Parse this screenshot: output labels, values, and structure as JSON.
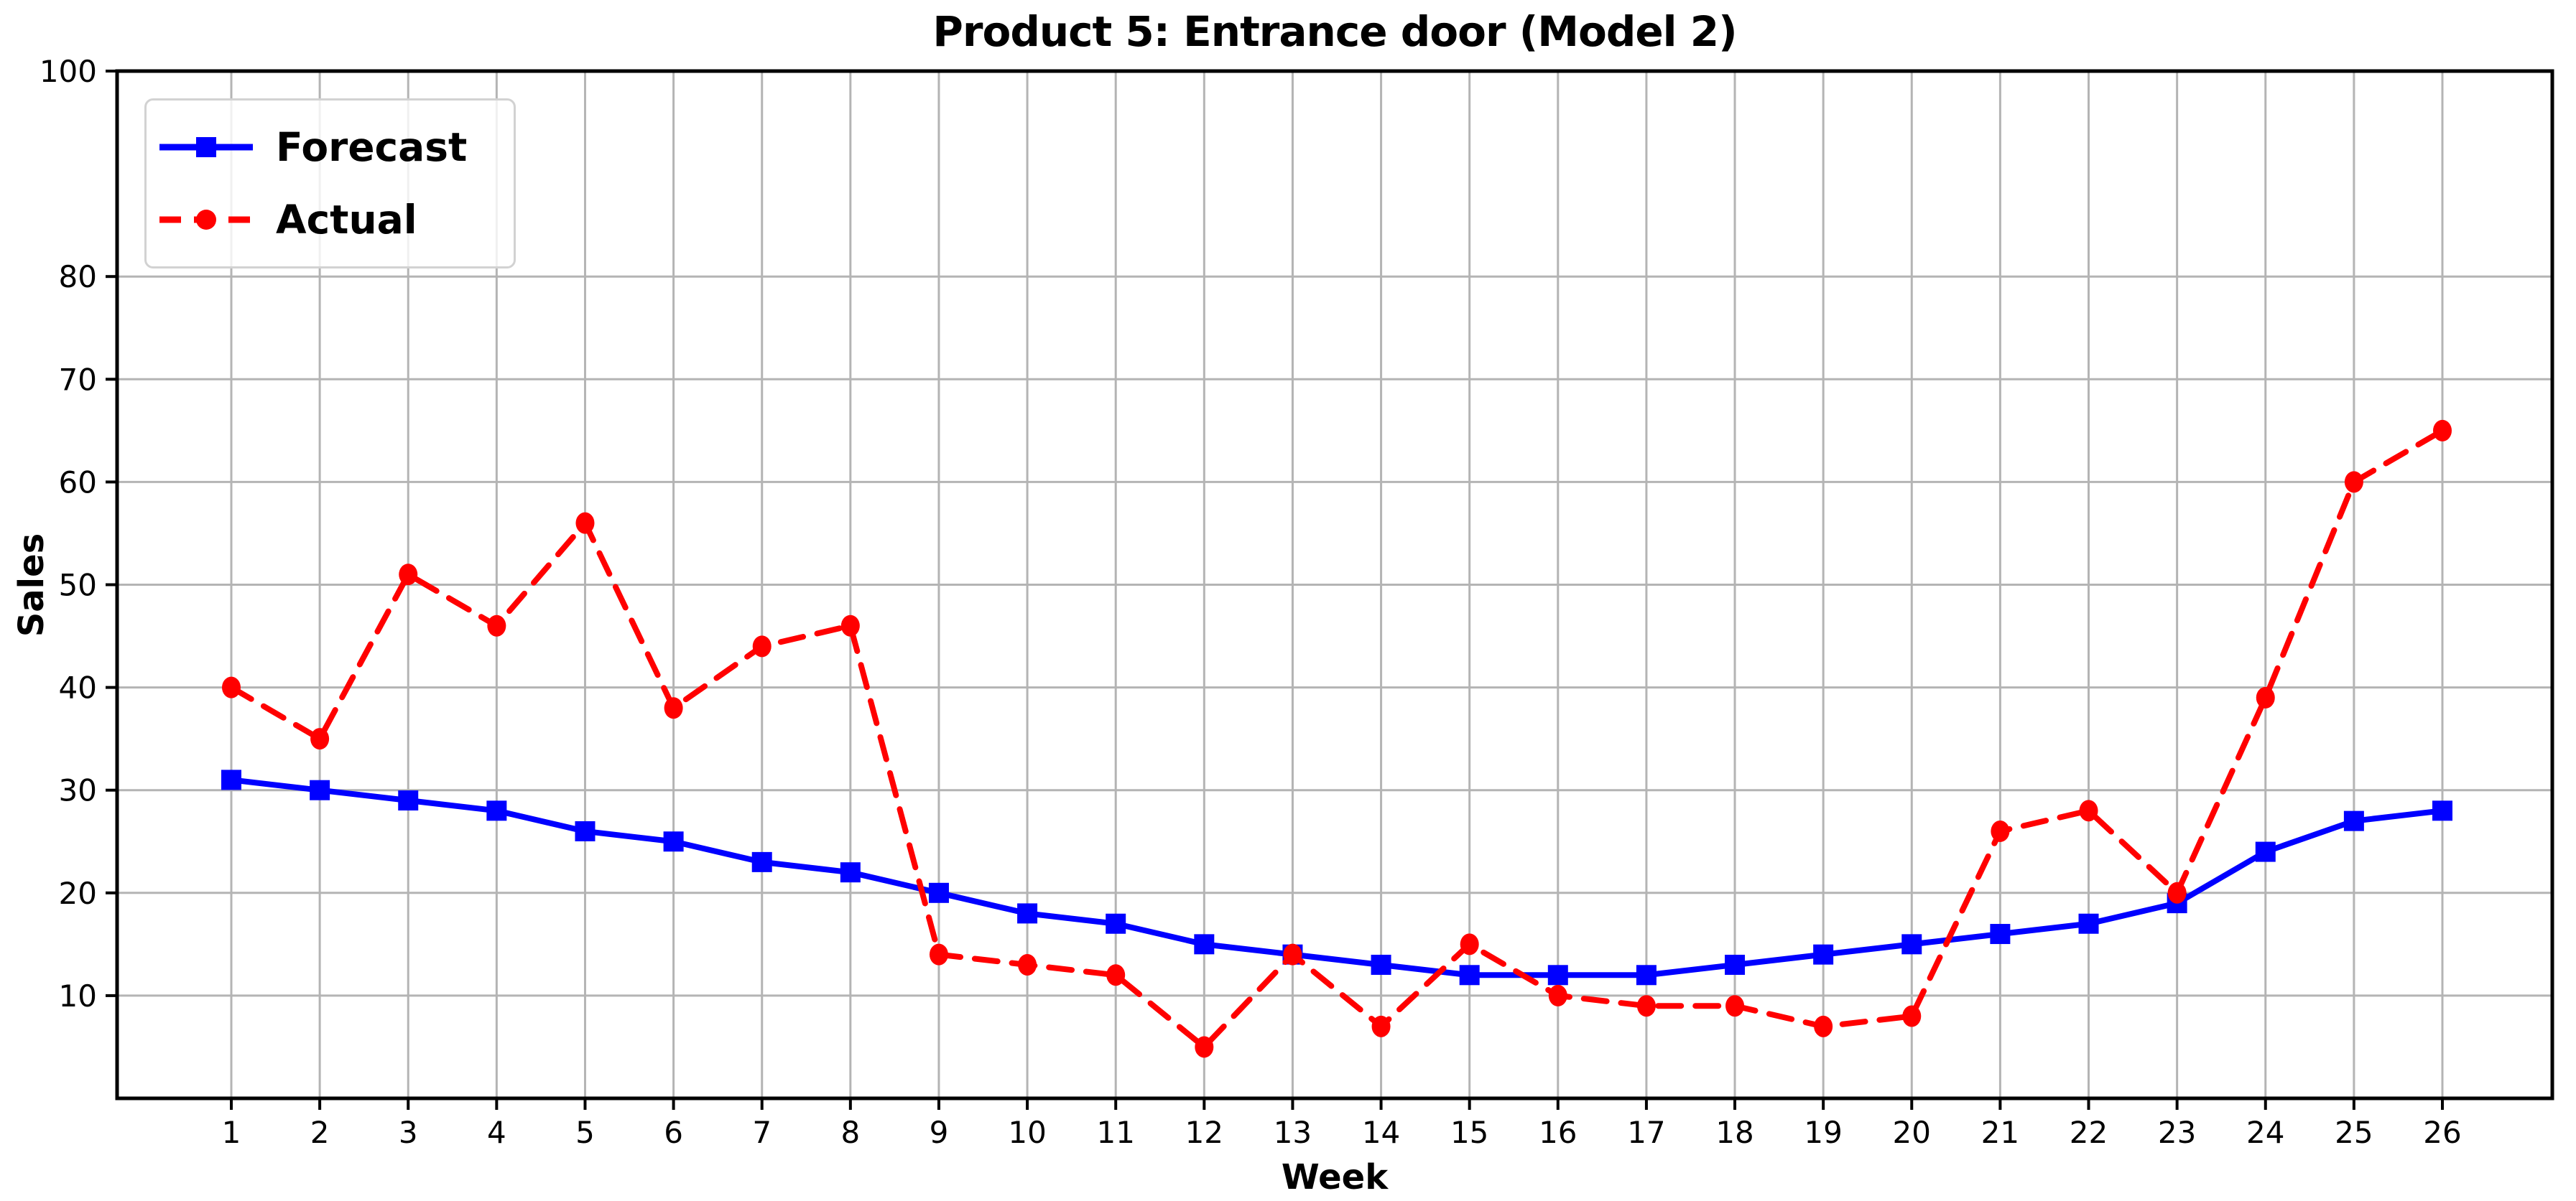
{
  "chart_data": {
    "type": "line",
    "title": "Product 5: Entrance door (Model 2)",
    "xlabel": "Week",
    "ylabel": "Sales",
    "x": [
      1,
      2,
      3,
      4,
      5,
      6,
      7,
      8,
      9,
      10,
      11,
      12,
      13,
      14,
      15,
      16,
      17,
      18,
      19,
      20,
      21,
      22,
      23,
      24,
      25,
      26
    ],
    "series": [
      {
        "name": "Forecast",
        "color": "#0000ff",
        "line_style": "solid",
        "marker": "square",
        "values": [
          31,
          30,
          29,
          28,
          26,
          25,
          23,
          22,
          20,
          18,
          17,
          15,
          14,
          13,
          12,
          12,
          12,
          13,
          14,
          15,
          16,
          17,
          19,
          24,
          27,
          28
        ]
      },
      {
        "name": "Actual",
        "color": "#ff0000",
        "line_style": "dashed",
        "marker": "circle",
        "values": [
          40,
          35,
          51,
          46,
          56,
          38,
          44,
          46,
          14,
          13,
          12,
          5,
          14,
          7,
          15,
          10,
          9,
          9,
          7,
          8,
          26,
          28,
          20,
          39,
          60,
          65
        ]
      }
    ],
    "ylim": [
      0,
      100
    ],
    "yticks": [
      10,
      20,
      30,
      40,
      50,
      60,
      70,
      80,
      100
    ],
    "xticks": [
      1,
      2,
      3,
      4,
      5,
      6,
      7,
      8,
      9,
      10,
      11,
      12,
      13,
      14,
      15,
      16,
      17,
      18,
      19,
      20,
      21,
      22,
      23,
      24,
      25,
      26
    ],
    "grid": true,
    "grid_color": "#b4b4b4",
    "spine_color": "#000000",
    "background_color": "#ffffff",
    "legend_position": "upper left"
  }
}
